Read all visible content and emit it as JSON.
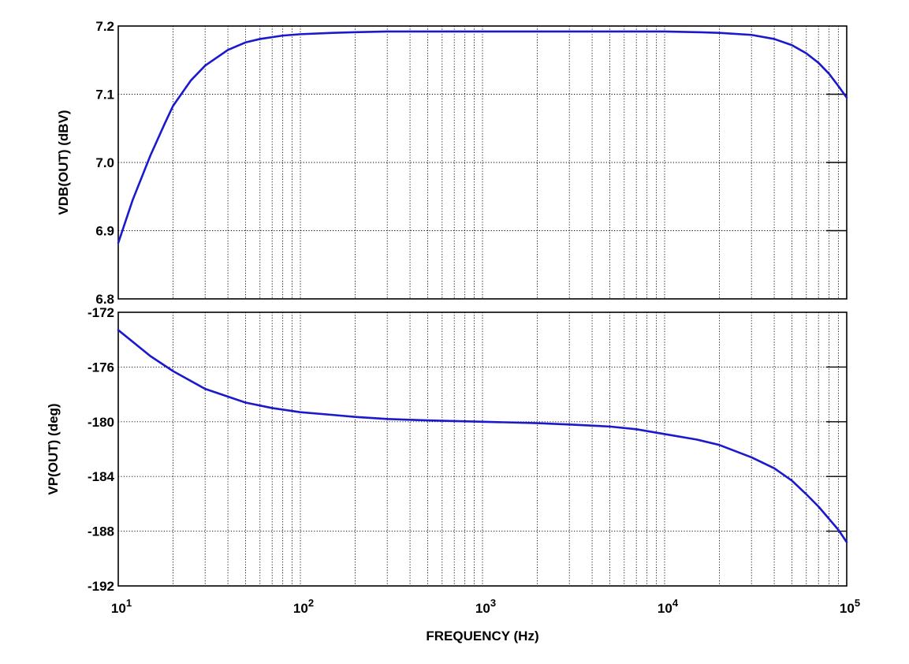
{
  "chart_data": [
    {
      "type": "line",
      "x_scale": "log",
      "xlim": [
        10,
        100000
      ],
      "ylim": [
        6.8,
        7.2
      ],
      "y_ticks": [
        "6.8",
        "6.9",
        "7.0",
        "7.1",
        "7.2"
      ],
      "ylabel": "VDB(OUT)  (dBV)",
      "grid": true,
      "series": [
        {
          "x": [
            10,
            12,
            15,
            18,
            20,
            25,
            30,
            40,
            50,
            60,
            80,
            100,
            150,
            200,
            300,
            500,
            1000,
            2000,
            5000,
            10000,
            15000,
            20000,
            30000,
            40000,
            50000,
            60000,
            70000,
            80000,
            90000,
            100000
          ],
          "values": [
            6.882,
            6.945,
            7.01,
            7.057,
            7.083,
            7.12,
            7.142,
            7.165,
            7.176,
            7.181,
            7.186,
            7.188,
            7.19,
            7.191,
            7.192,
            7.192,
            7.192,
            7.192,
            7.192,
            7.192,
            7.191,
            7.19,
            7.187,
            7.181,
            7.172,
            7.16,
            7.146,
            7.13,
            7.112,
            7.095
          ]
        }
      ]
    },
    {
      "type": "line",
      "x_scale": "log",
      "xlim": [
        10,
        100000
      ],
      "ylim": [
        -192,
        -172
      ],
      "y_ticks": [
        "-192",
        "-188",
        "-184",
        "-180",
        "-176",
        "-172"
      ],
      "ylabel": "VP(OUT)  (deg)",
      "xlabel": "FREQUENCY  (Hz)",
      "x_ticks": [
        {
          "base": "10",
          "exp": "1"
        },
        {
          "base": "10",
          "exp": "2"
        },
        {
          "base": "10",
          "exp": "3"
        },
        {
          "base": "10",
          "exp": "4"
        },
        {
          "base": "10",
          "exp": "5"
        }
      ],
      "grid": true,
      "series": [
        {
          "x": [
            10,
            15,
            20,
            30,
            50,
            70,
            100,
            150,
            200,
            300,
            500,
            700,
            1000,
            2000,
            3000,
            5000,
            7000,
            10000,
            15000,
            20000,
            30000,
            40000,
            50000,
            60000,
            70000,
            80000,
            90000,
            100000
          ],
          "values": [
            -173.3,
            -175.2,
            -176.3,
            -177.6,
            -178.6,
            -179.0,
            -179.3,
            -179.5,
            -179.65,
            -179.8,
            -179.9,
            -179.95,
            -180.0,
            -180.1,
            -180.2,
            -180.35,
            -180.55,
            -180.9,
            -181.3,
            -181.7,
            -182.6,
            -183.4,
            -184.3,
            -185.3,
            -186.2,
            -187.1,
            -187.9,
            -188.8
          ]
        }
      ]
    }
  ],
  "colors": {
    "curve": "#1a1acc"
  }
}
